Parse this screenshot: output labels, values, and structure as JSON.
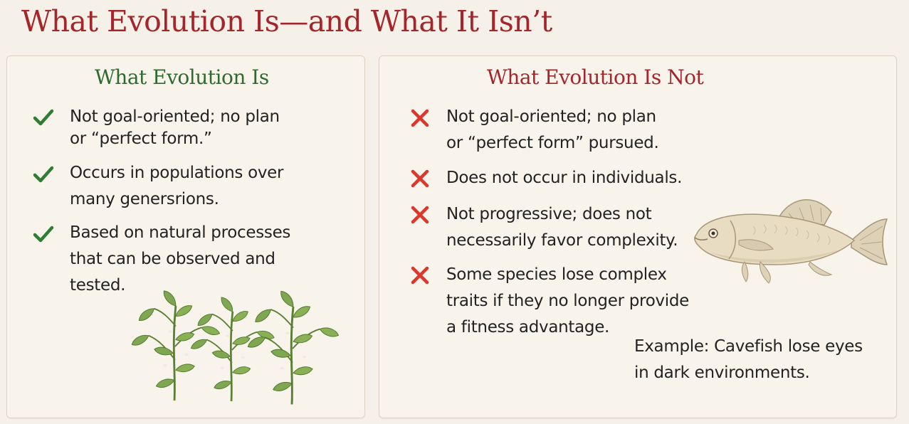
{
  "title": "What Evolution Is—and What It Isn’t",
  "is": {
    "heading": "What Evolution Is",
    "items": [
      {
        "line1": "Not goal-oriented; no plan",
        "line2": "or “perfect form.”"
      },
      {
        "line1": "Occurs in populations over",
        "line2": "many genersrions."
      },
      {
        "line1": "Based on natural processes",
        "line2": "that can be observed and",
        "line3": "tested."
      }
    ],
    "icon": "check-icon",
    "image": "plants-illustration"
  },
  "is_not": {
    "heading": "What Evolution Is Not",
    "items": [
      {
        "line1": "Not goal-oriented; no plan",
        "line2": "or “perfect form” pursued."
      },
      {
        "line1": "Does not occur in individuals."
      },
      {
        "line1": "Not progressive; does not",
        "line2": "necessarily favor complexity."
      },
      {
        "line1": "Some species lose complex",
        "line2": "traits if they no longer provide",
        "line3": "a fitness advantage."
      }
    ],
    "icon": "cross-icon",
    "example_line1": "Example: Cavefish lose eyes",
    "example_line2": "in dark environments.",
    "image": "cavefish-illustration"
  },
  "colors": {
    "title": "#a4262c",
    "heading_is": "#2f6b2f",
    "heading_is_not": "#a4262c",
    "check": "#2e7d32",
    "cross": "#d9382b",
    "background": "#f6f1e8"
  }
}
